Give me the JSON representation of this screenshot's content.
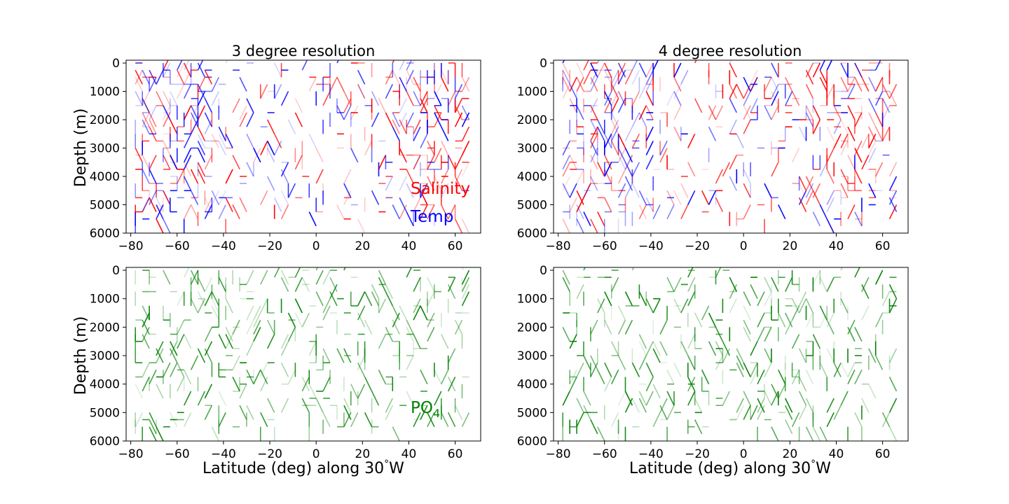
{
  "figure": {
    "colors": {
      "salinity": "#ff0000",
      "temp": "#0000ff",
      "po4": "#008000",
      "frame": "#000000"
    }
  },
  "chart_data": [
    {
      "type": "line",
      "panel": "top-left",
      "title": "3 degree resolution",
      "xlabel": "",
      "ylabel": "Depth (m)",
      "xlim": [
        -82,
        71
      ],
      "ylim": [
        6000,
        -100
      ],
      "y_inverted": true,
      "xticks": [
        -80,
        -60,
        -40,
        -20,
        0,
        20,
        40,
        60
      ],
      "yticks": [
        0,
        1000,
        2000,
        3000,
        4000,
        5000,
        6000
      ],
      "grid": false,
      "legend": {
        "placement": "bottom-right",
        "entries": [
          {
            "label": "Salinity",
            "color": "#ff0000"
          },
          {
            "label": "Temp",
            "color": "#0000ff"
          }
        ]
      },
      "series": [
        {
          "name": "Salinity",
          "color": "#ff0000",
          "seed": 11,
          "density": "mid-north",
          "x_range": [
            -78,
            64
          ],
          "y_range": [
            0,
            5500
          ]
        },
        {
          "name": "Temp",
          "color": "#0000ff",
          "seed": 23,
          "density": "south",
          "x_range": [
            -78,
            64
          ],
          "y_range": [
            0,
            5500
          ]
        }
      ]
    },
    {
      "type": "line",
      "panel": "top-right",
      "title": "4 degree resolution",
      "xlabel": "",
      "ylabel": "",
      "xlim": [
        -82,
        71
      ],
      "ylim": [
        6000,
        -100
      ],
      "y_inverted": true,
      "xticks": [
        -80,
        -60,
        -40,
        -20,
        0,
        20,
        40,
        60
      ],
      "yticks": [
        0,
        1000,
        2000,
        3000,
        4000,
        5000,
        6000
      ],
      "grid": false,
      "series": [
        {
          "name": "Salinity",
          "color": "#ff0000",
          "seed": 37,
          "density": "mid-north",
          "x_range": [
            -78,
            64
          ],
          "y_range": [
            0,
            5500
          ]
        },
        {
          "name": "Temp",
          "color": "#0000ff",
          "seed": 41,
          "density": "south",
          "x_range": [
            -78,
            64
          ],
          "y_range": [
            0,
            5500
          ]
        }
      ]
    },
    {
      "type": "line",
      "panel": "bottom-left",
      "title": "",
      "xlabel": "Latitude (deg) along 30$^\\circ$W",
      "ylabel": "Depth (m)",
      "xlim": [
        -82,
        71
      ],
      "ylim": [
        6000,
        -100
      ],
      "y_inverted": true,
      "xticks": [
        -80,
        -60,
        -40,
        -20,
        0,
        20,
        40,
        60
      ],
      "yticks": [
        0,
        1000,
        2000,
        3000,
        4000,
        5000,
        6000
      ],
      "grid": false,
      "legend": {
        "placement": "bottom-right",
        "entries": [
          {
            "label": "PO4",
            "color": "#008000"
          }
        ]
      },
      "series": [
        {
          "name": "PO4",
          "color": "#008000",
          "seed": 53,
          "density": "uniform",
          "x_range": [
            -78,
            64
          ],
          "y_range": [
            0,
            5500
          ]
        }
      ]
    },
    {
      "type": "line",
      "panel": "bottom-right",
      "title": "",
      "xlabel": "Latitude (deg) along 30$^\\circ$W",
      "ylabel": "",
      "xlim": [
        -82,
        71
      ],
      "ylim": [
        6000,
        -100
      ],
      "y_inverted": true,
      "xticks": [
        -80,
        -60,
        -40,
        -20,
        0,
        20,
        40,
        60
      ],
      "yticks": [
        0,
        1000,
        2000,
        3000,
        4000,
        5000,
        6000
      ],
      "grid": false,
      "series": [
        {
          "name": "PO4",
          "color": "#008000",
          "seed": 71,
          "density": "uniform",
          "x_range": [
            -78,
            64
          ],
          "y_range": [
            0,
            5500
          ]
        }
      ]
    }
  ],
  "labels": {
    "title_left": "3 degree resolution",
    "title_right": "4 degree resolution",
    "ylabel": "Depth (m)",
    "xlabel_prefix": "Latitude (deg) along 30",
    "xlabel_degree": "°",
    "xlabel_suffix": "W",
    "legend_salinity": "Salinity",
    "legend_temp": "Temp",
    "legend_po4_main": "PO",
    "legend_po4_sub": "4"
  }
}
